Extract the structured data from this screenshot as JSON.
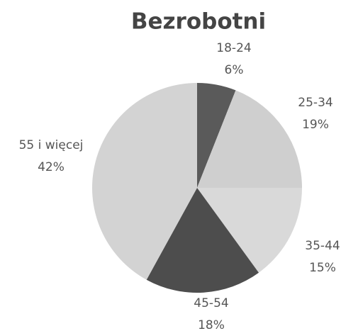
{
  "chart_data": {
    "type": "pie",
    "title": "Bezrobotni",
    "categories": [
      "18-24",
      "25-34",
      "35-44",
      "45-54",
      "55 i więcej"
    ],
    "values": [
      6,
      19,
      15,
      18,
      42
    ],
    "value_labels": [
      "6%",
      "19%",
      "15%",
      "18%",
      "42%"
    ],
    "colors": [
      "#5a5a5a",
      "#cfcfcf",
      "#d9d9d9",
      "#4d4d4d",
      "#d3d3d3"
    ]
  }
}
